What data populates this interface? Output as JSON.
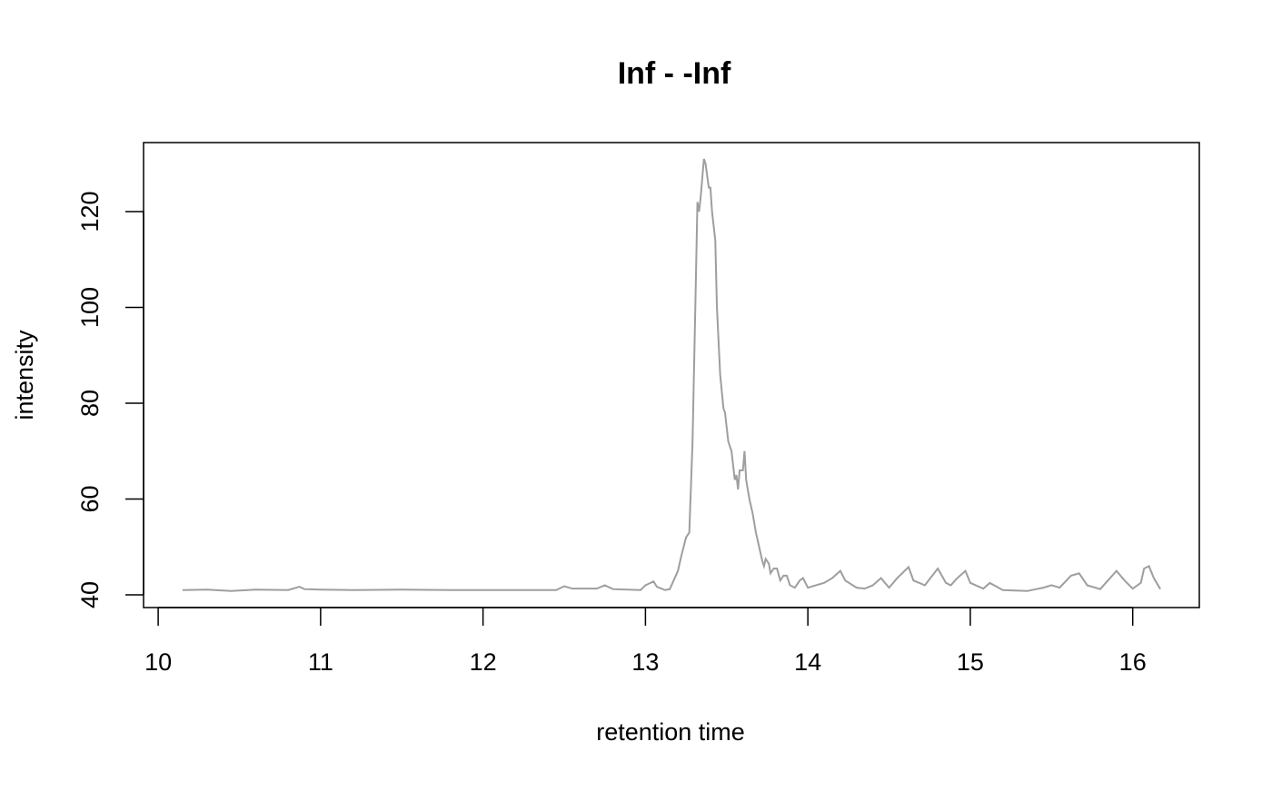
{
  "chart_data": {
    "type": "line",
    "title": "Inf - -Inf",
    "x_label": "retention time",
    "y_label": "intensity",
    "x": [
      10.15,
      10.3,
      10.45,
      10.6,
      10.8,
      10.87,
      10.9,
      11.0,
      11.2,
      11.5,
      11.8,
      12.0,
      12.2,
      12.45,
      12.5,
      12.55,
      12.7,
      12.75,
      12.8,
      12.97,
      13.0,
      13.05,
      13.07,
      13.12,
      13.15,
      13.2,
      13.22,
      13.25,
      13.27,
      13.29,
      13.31,
      13.32,
      13.33,
      13.34,
      13.36,
      13.37,
      13.39,
      13.4,
      13.41,
      13.43,
      13.44,
      13.46,
      13.48,
      13.49,
      13.51,
      13.53,
      13.55,
      13.56,
      13.57,
      13.58,
      13.6,
      13.61,
      13.62,
      13.64,
      13.66,
      13.68,
      13.7,
      13.72,
      13.73,
      13.74,
      13.76,
      13.77,
      13.79,
      13.81,
      13.83,
      13.85,
      13.87,
      13.89,
      13.92,
      13.95,
      13.97,
      14.0,
      14.05,
      14.1,
      14.15,
      14.2,
      14.23,
      14.3,
      14.35,
      14.4,
      14.45,
      14.5,
      14.55,
      14.62,
      14.65,
      14.72,
      14.8,
      14.85,
      14.88,
      14.92,
      14.97,
      15.0,
      15.08,
      15.12,
      15.2,
      15.35,
      15.45,
      15.5,
      15.55,
      15.62,
      15.67,
      15.72,
      15.8,
      15.9,
      15.95,
      16.0,
      16.05,
      16.07,
      16.1,
      16.13,
      16.17
    ],
    "series": [
      {
        "color": "#9e9e9e",
        "values": [
          41,
          41.1,
          40.8,
          41.1,
          41,
          41.7,
          41.2,
          41.1,
          41,
          41.1,
          41,
          41,
          41,
          41,
          41.8,
          41.3,
          41.3,
          42,
          41.2,
          41,
          42,
          42.8,
          41.7,
          41,
          41.2,
          45,
          48,
          52,
          53,
          72,
          105,
          122,
          120,
          123,
          131,
          130,
          125,
          125,
          120,
          114,
          100,
          86,
          79,
          78,
          72,
          70,
          64,
          65,
          62,
          66,
          66,
          70,
          64,
          60,
          57,
          53,
          50,
          47,
          46,
          47.5,
          46.5,
          44.5,
          45.5,
          45.5,
          43,
          44,
          44,
          42,
          41.5,
          43,
          43.5,
          41.5,
          42,
          42.5,
          43.5,
          45,
          43,
          41.5,
          41.3,
          42,
          43.5,
          41.5,
          43.5,
          45.8,
          43,
          42,
          45.5,
          42.5,
          42,
          43.5,
          45,
          42.5,
          41.3,
          42.5,
          41,
          40.8,
          41.5,
          42,
          41.5,
          44,
          44.5,
          42,
          41.2,
          45,
          43,
          41.3,
          42.5,
          45.5,
          46,
          43.5,
          41.2
        ]
      }
    ],
    "xlim": [
      9.91,
      16.41
    ],
    "ylim": [
      37.35,
      134.4
    ],
    "xticks": [
      10,
      11,
      12,
      13,
      14,
      15,
      16
    ],
    "yticks": [
      40,
      60,
      80,
      100,
      120
    ]
  }
}
